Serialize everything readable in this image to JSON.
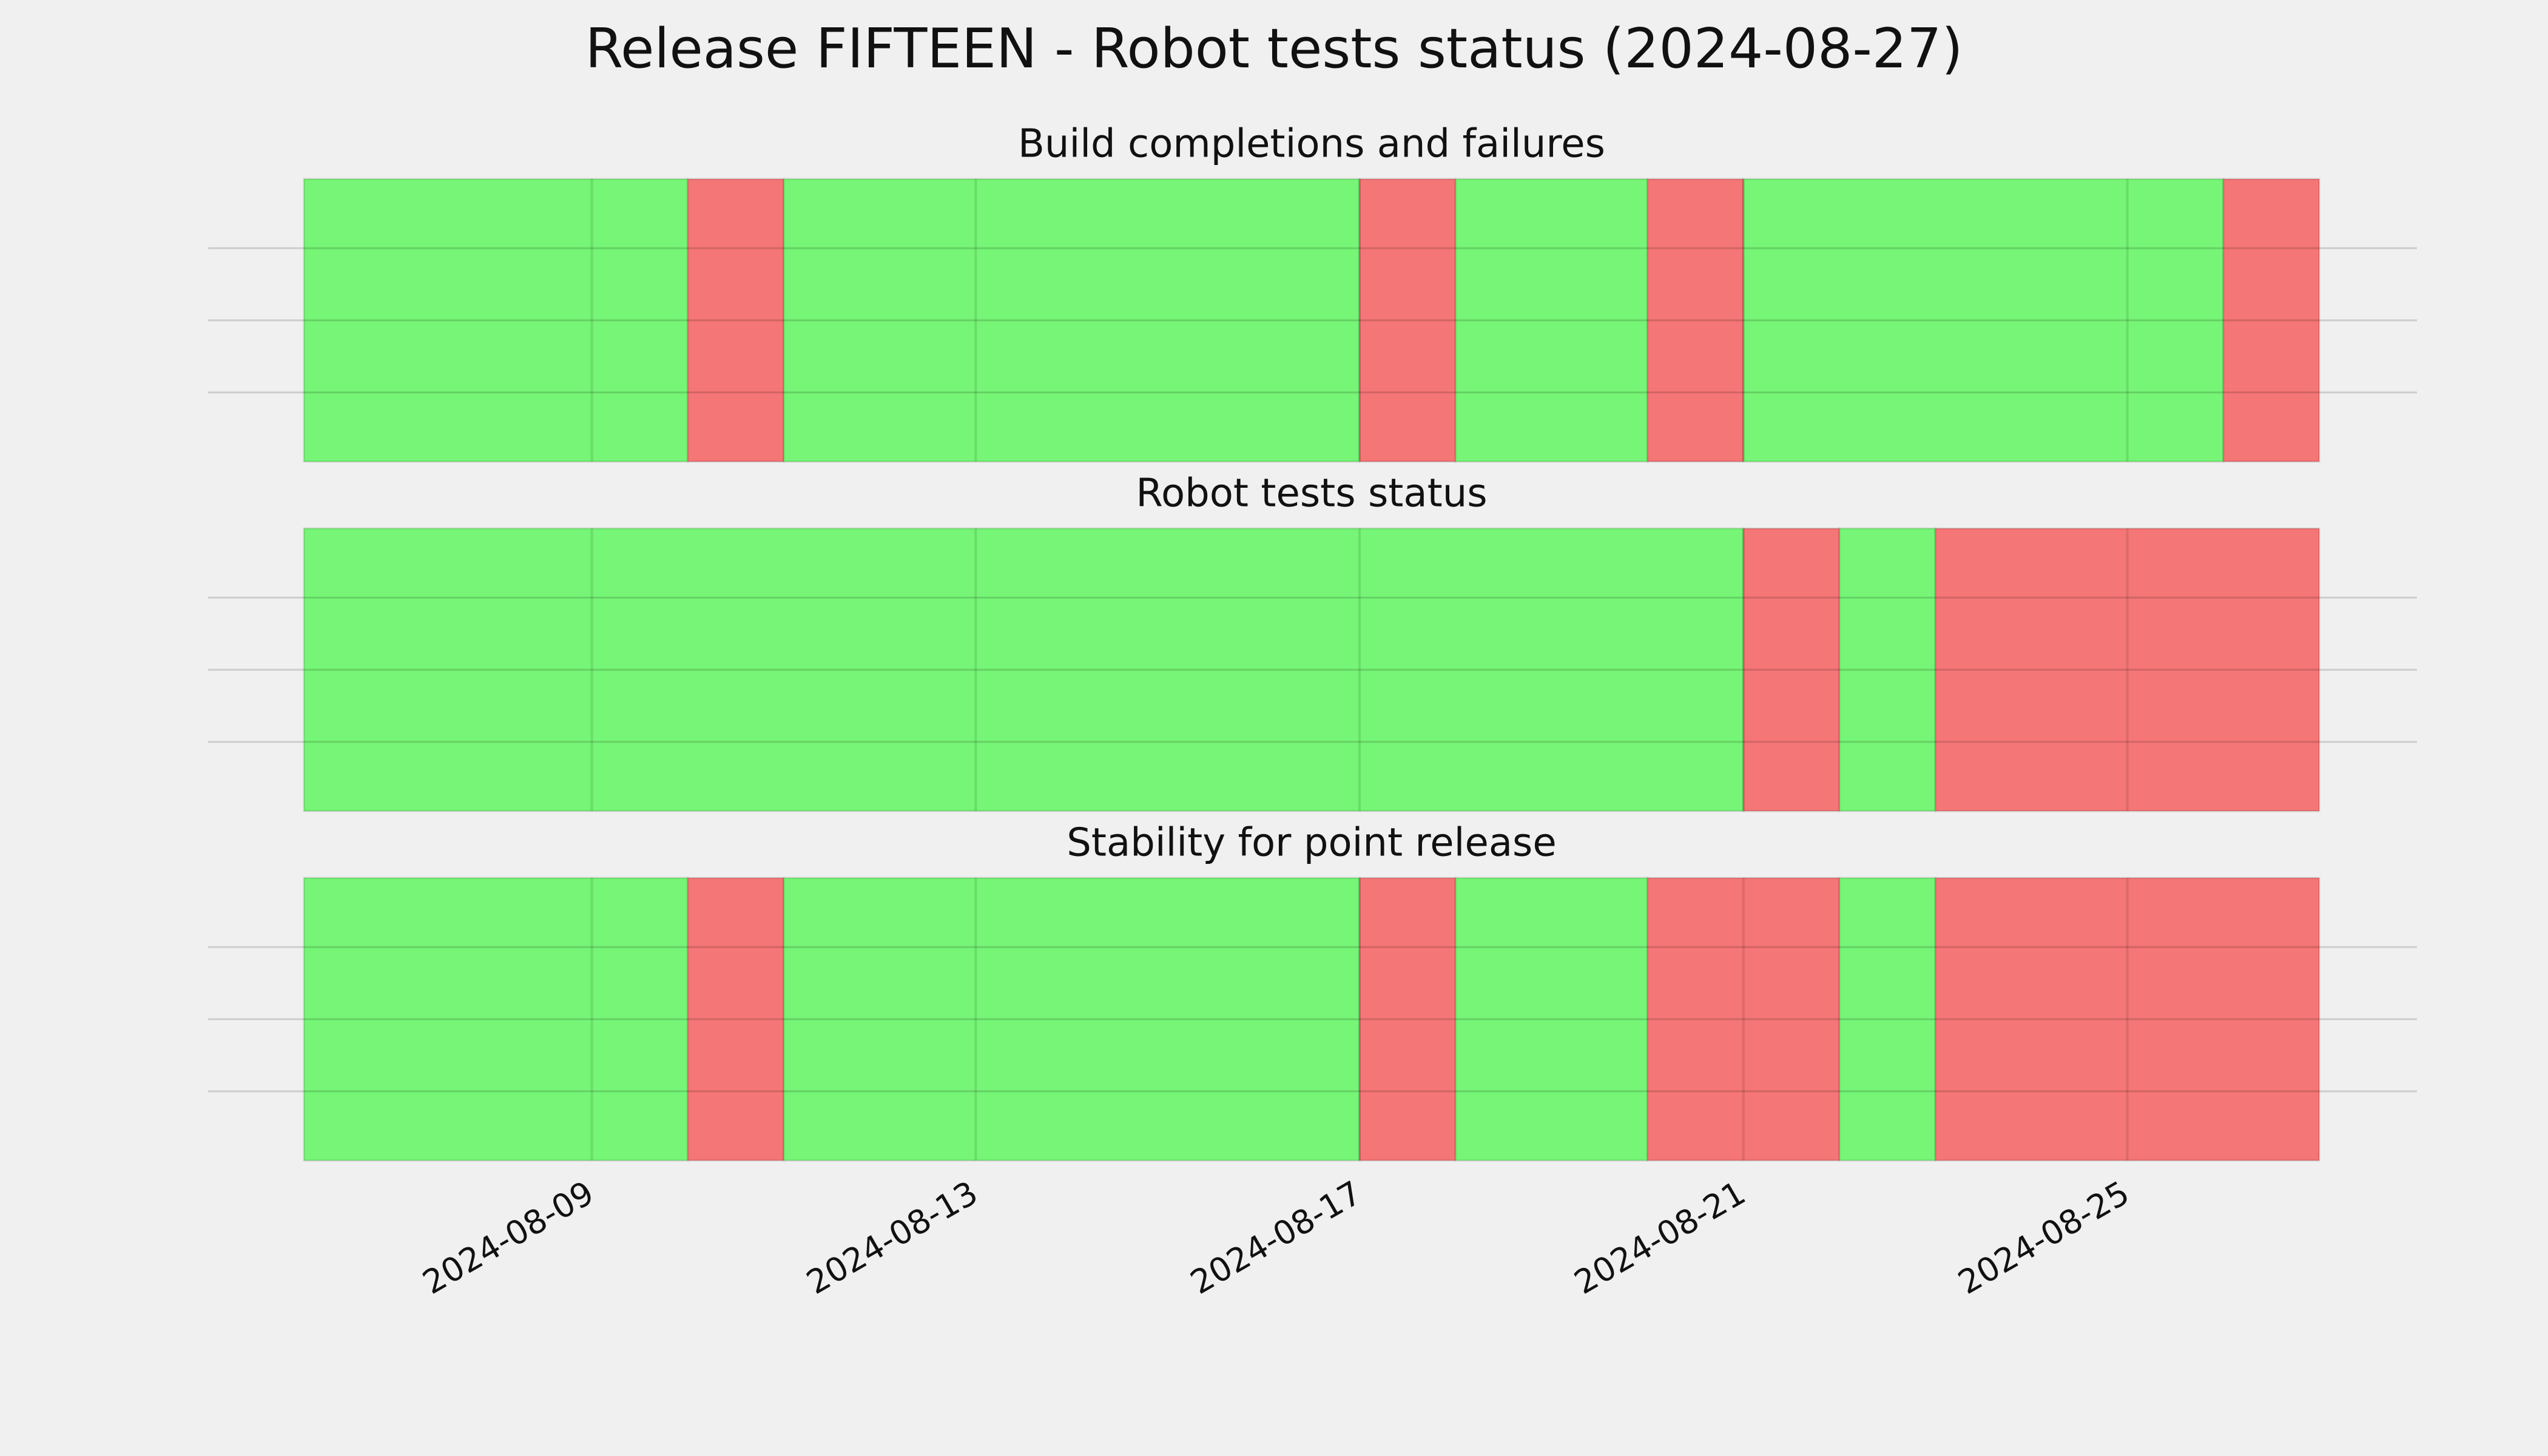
{
  "chart_data": [
    {
      "type": "timeline",
      "title": "Release FIFTEEN - Robot tests status (2024-08-27)",
      "subtitle": "Build completions and failures",
      "xlim": [
        "2024-08-06",
        "2024-08-27"
      ],
      "xticks": [
        "2024-08-09",
        "2024-08-13",
        "2024-08-17",
        "2024-08-21",
        "2024-08-25"
      ],
      "pass_color": "#76f576",
      "fail_color": "#f57676",
      "grid": true,
      "segments": [
        {
          "start": "2024-08-06",
          "end": "2024-08-10",
          "passed": true
        },
        {
          "start": "2024-08-10",
          "end": "2024-08-11",
          "passed": false
        },
        {
          "start": "2024-08-11",
          "end": "2024-08-17",
          "passed": true
        },
        {
          "start": "2024-08-17",
          "end": "2024-08-18",
          "passed": false
        },
        {
          "start": "2024-08-18",
          "end": "2024-08-20",
          "passed": true
        },
        {
          "start": "2024-08-20",
          "end": "2024-08-21",
          "passed": false
        },
        {
          "start": "2024-08-21",
          "end": "2024-08-26",
          "passed": true
        },
        {
          "start": "2024-08-26",
          "end": "2024-08-27",
          "passed": false
        }
      ]
    },
    {
      "type": "timeline",
      "subtitle": "Robot tests status",
      "xlim": [
        "2024-08-06",
        "2024-08-27"
      ],
      "xticks": [
        "2024-08-09",
        "2024-08-13",
        "2024-08-17",
        "2024-08-21",
        "2024-08-25"
      ],
      "pass_color": "#76f576",
      "fail_color": "#f57676",
      "grid": true,
      "segments": [
        {
          "start": "2024-08-06",
          "end": "2024-08-21",
          "passed": true
        },
        {
          "start": "2024-08-21",
          "end": "2024-08-22",
          "passed": false
        },
        {
          "start": "2024-08-22",
          "end": "2024-08-23",
          "passed": true
        },
        {
          "start": "2024-08-23",
          "end": "2024-08-27",
          "passed": false
        }
      ]
    },
    {
      "type": "timeline",
      "subtitle": "Stability for point release",
      "xlim": [
        "2024-08-06",
        "2024-08-27"
      ],
      "xticks": [
        "2024-08-09",
        "2024-08-13",
        "2024-08-17",
        "2024-08-21",
        "2024-08-25"
      ],
      "pass_color": "#76f576",
      "fail_color": "#f57676",
      "grid": true,
      "segments": [
        {
          "start": "2024-08-06",
          "end": "2024-08-10",
          "passed": true
        },
        {
          "start": "2024-08-10",
          "end": "2024-08-11",
          "passed": false
        },
        {
          "start": "2024-08-11",
          "end": "2024-08-17",
          "passed": true
        },
        {
          "start": "2024-08-17",
          "end": "2024-08-18",
          "passed": false
        },
        {
          "start": "2024-08-18",
          "end": "2024-08-20",
          "passed": true
        },
        {
          "start": "2024-08-20",
          "end": "2024-08-22",
          "passed": false
        },
        {
          "start": "2024-08-22",
          "end": "2024-08-23",
          "passed": true
        },
        {
          "start": "2024-08-23",
          "end": "2024-08-27",
          "passed": false
        }
      ]
    }
  ]
}
